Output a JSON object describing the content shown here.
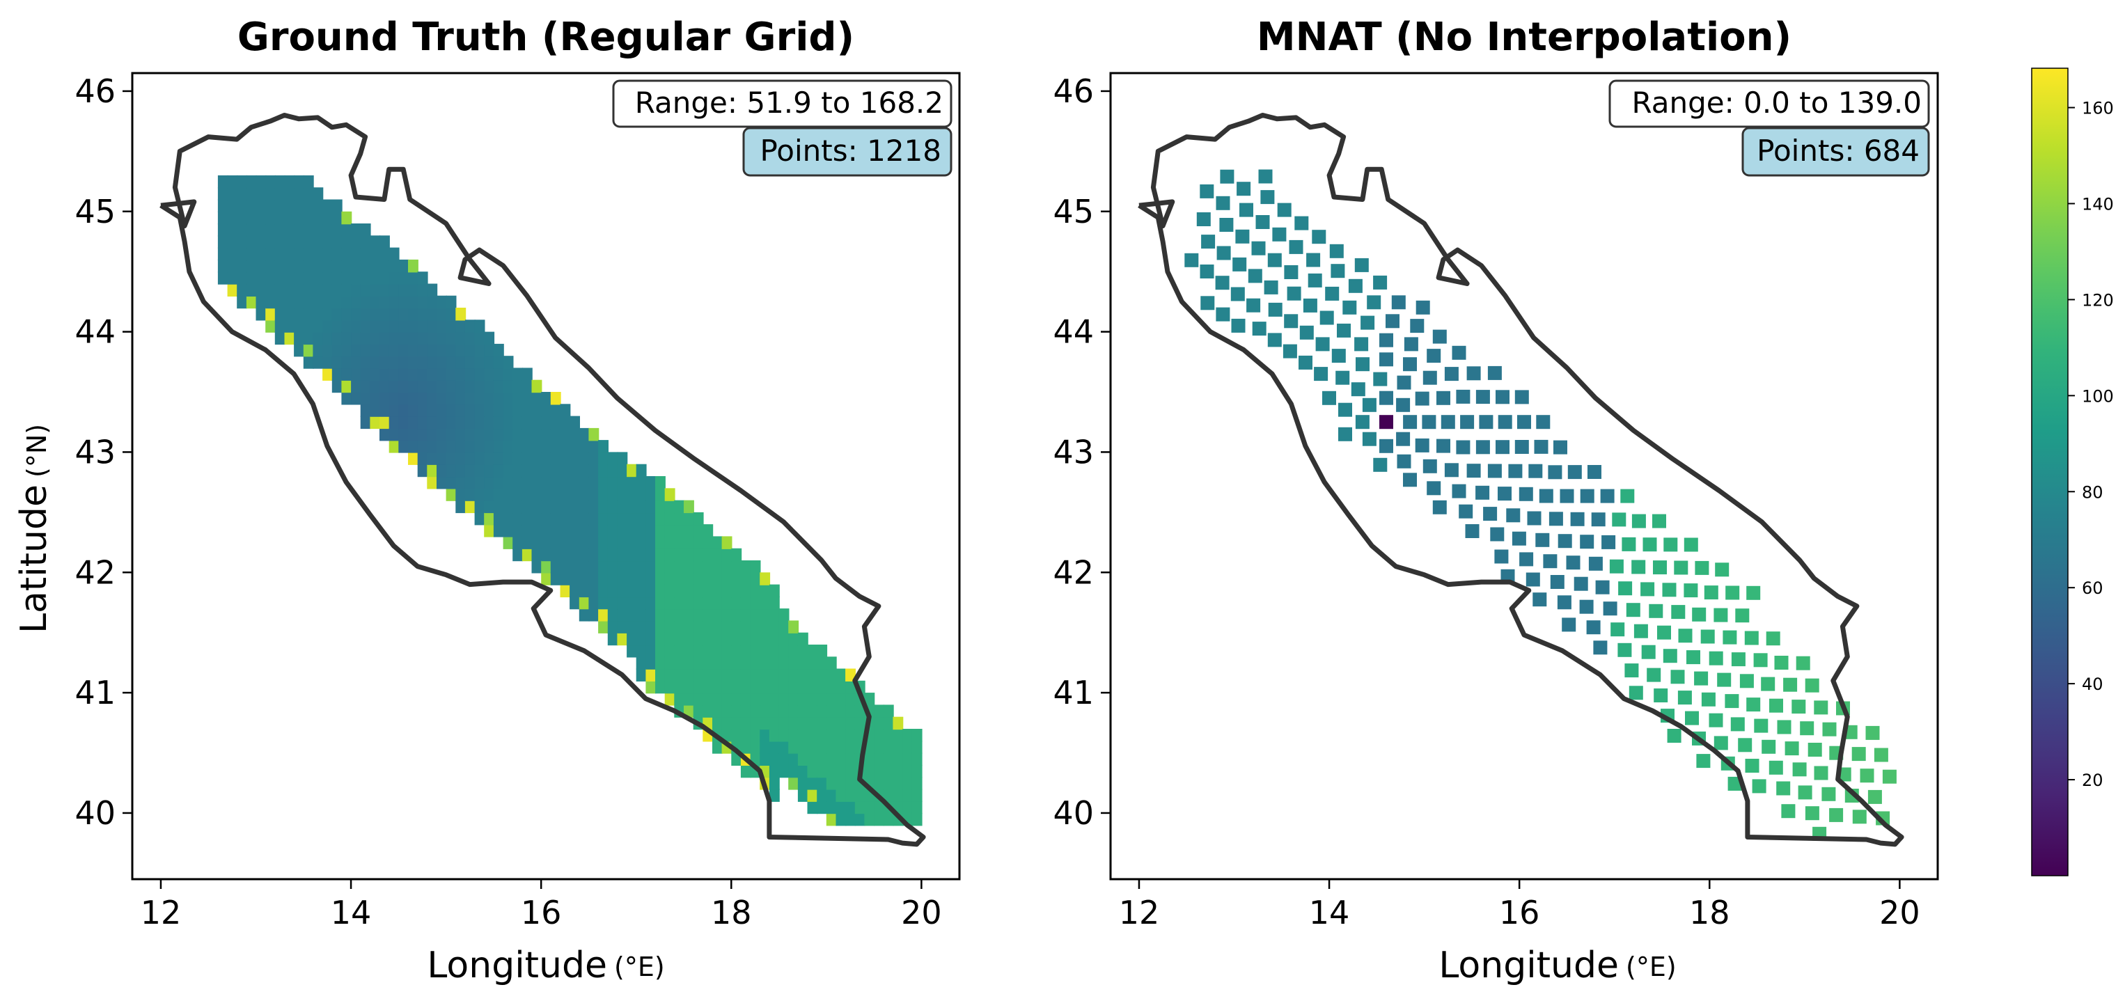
{
  "figure": {
    "panels": [
      {
        "title": "Ground Truth (Regular Grid)",
        "range_label": "Range: 51.9 to 168.2",
        "points_label": "Points: 1218",
        "ylabel": "Latitude",
        "ylabel_unit": "(°N)"
      },
      {
        "title": "MNAT (No Interpolation)",
        "range_label": "Range: 0.0 to 139.0",
        "points_label": "Points: 684"
      }
    ],
    "xlabel": "Longitude",
    "xlabel_unit": "(°E)",
    "colorbar_ticks": [
      "20",
      "40",
      "60",
      "80",
      "100",
      "120",
      "140",
      "160"
    ]
  },
  "chart_data": [
    {
      "type": "heatmap",
      "title": "Ground Truth (Regular Grid)",
      "xlabel": "Longitude (°E)",
      "ylabel": "Latitude (°N)",
      "xlim": [
        11.7,
        20.4
      ],
      "ylim": [
        39.45,
        46.15
      ],
      "xticks": [
        12,
        14,
        16,
        18,
        20
      ],
      "yticks": [
        40,
        41,
        42,
        43,
        44,
        45,
        46
      ],
      "value_range": [
        51.9,
        168.2
      ],
      "point_count": 1218,
      "grid_spacing_deg": 0.1,
      "colormap": "viridis",
      "value_field": [
        {
          "center": [
            14.5,
            43.25
          ],
          "value": 55,
          "description": "low-value minimum"
        },
        {
          "region": "NW basin (lon 12.6-16.5)",
          "value": 72
        },
        {
          "region": "central basin (lon 16-17.2)",
          "value": 80
        },
        {
          "region": "SE basin (lon 17.2-19.2)",
          "value": 108
        },
        {
          "region": "southern coastal strip (lon 18.5-20)",
          "value": 90
        },
        {
          "region": "coastal edge cells",
          "value_range": [
            130,
            168.2
          ]
        }
      ]
    },
    {
      "type": "scatter",
      "title": "MNAT (No Interpolation)",
      "xlabel": "Longitude (°E)",
      "xlim": [
        11.7,
        20.4
      ],
      "ylim": [
        39.45,
        46.15
      ],
      "xticks": [
        12,
        14,
        16,
        18,
        20
      ],
      "yticks": [
        40,
        41,
        42,
        43,
        44,
        45,
        46
      ],
      "value_range": [
        0.0,
        139.0
      ],
      "point_count": 684,
      "marker": "square",
      "colormap": "viridis",
      "center": [
        14.6,
        43.25
      ],
      "center_value": 0.0,
      "value_field": [
        {
          "region": "near center",
          "value": 62
        },
        {
          "region": "NW fan",
          "value": 76
        },
        {
          "region": "SE fan (lon > 17)",
          "value": 105
        },
        {
          "region": "far SE edge",
          "value": 120
        }
      ]
    }
  ],
  "colorbar": {
    "colormap": "viridis",
    "vmin": 0,
    "vmax": 168.2,
    "ticks": [
      20,
      40,
      60,
      80,
      100,
      120,
      140,
      160
    ]
  },
  "coastline_lonlat": [
    [
      12.0,
      45.05
    ],
    [
      12.35,
      45.08
    ],
    [
      12.25,
      44.88
    ],
    [
      12.15,
      45.2
    ],
    [
      12.2,
      45.5
    ],
    [
      12.5,
      45.62
    ],
    [
      12.8,
      45.6
    ],
    [
      12.95,
      45.7
    ],
    [
      13.15,
      45.75
    ],
    [
      13.3,
      45.8
    ],
    [
      13.45,
      45.77
    ],
    [
      13.65,
      45.78
    ],
    [
      13.8,
      45.7
    ],
    [
      13.95,
      45.72
    ],
    [
      14.15,
      45.62
    ],
    [
      14.1,
      45.48
    ],
    [
      14.0,
      45.3
    ],
    [
      14.05,
      45.12
    ],
    [
      14.35,
      45.1
    ],
    [
      14.4,
      45.35
    ],
    [
      14.55,
      45.35
    ],
    [
      14.62,
      45.1
    ],
    [
      15.0,
      44.9
    ],
    [
      15.25,
      44.6
    ],
    [
      15.45,
      44.4
    ],
    [
      15.15,
      44.45
    ],
    [
      15.2,
      44.6
    ],
    [
      15.35,
      44.68
    ],
    [
      15.6,
      44.55
    ],
    [
      15.85,
      44.3
    ],
    [
      16.15,
      43.95
    ],
    [
      16.5,
      43.7
    ],
    [
      16.8,
      43.45
    ],
    [
      17.2,
      43.18
    ],
    [
      17.6,
      42.95
    ],
    [
      18.1,
      42.68
    ],
    [
      18.55,
      42.42
    ],
    [
      18.95,
      42.1
    ],
    [
      19.1,
      41.95
    ],
    [
      19.35,
      41.8
    ],
    [
      19.55,
      41.72
    ],
    [
      19.4,
      41.55
    ],
    [
      19.45,
      41.3
    ],
    [
      19.3,
      41.1
    ],
    [
      19.45,
      40.8
    ],
    [
      19.38,
      40.48
    ],
    [
      19.35,
      40.28
    ],
    [
      19.6,
      40.1
    ],
    [
      19.85,
      39.9
    ],
    [
      20.02,
      39.8
    ],
    [
      19.95,
      39.74
    ],
    [
      19.8,
      39.75
    ],
    [
      19.65,
      39.78
    ],
    [
      18.4,
      39.8
    ],
    [
      18.4,
      40.1
    ],
    [
      18.3,
      40.35
    ],
    [
      18.05,
      40.52
    ],
    [
      17.7,
      40.72
    ],
    [
      17.4,
      40.85
    ],
    [
      17.1,
      40.95
    ],
    [
      16.85,
      41.15
    ],
    [
      16.45,
      41.35
    ],
    [
      16.05,
      41.48
    ],
    [
      15.92,
      41.7
    ],
    [
      16.1,
      41.85
    ],
    [
      15.9,
      41.92
    ],
    [
      15.6,
      41.92
    ],
    [
      15.25,
      41.9
    ],
    [
      15.0,
      41.98
    ],
    [
      14.7,
      42.05
    ],
    [
      14.45,
      42.22
    ],
    [
      14.2,
      42.48
    ],
    [
      13.95,
      42.75
    ],
    [
      13.75,
      43.05
    ],
    [
      13.6,
      43.4
    ],
    [
      13.4,
      43.65
    ],
    [
      13.1,
      43.85
    ],
    [
      12.75,
      44.0
    ],
    [
      12.45,
      44.25
    ],
    [
      12.3,
      44.5
    ],
    [
      12.25,
      44.75
    ],
    [
      12.2,
      44.95
    ],
    [
      12.0,
      45.05
    ]
  ]
}
